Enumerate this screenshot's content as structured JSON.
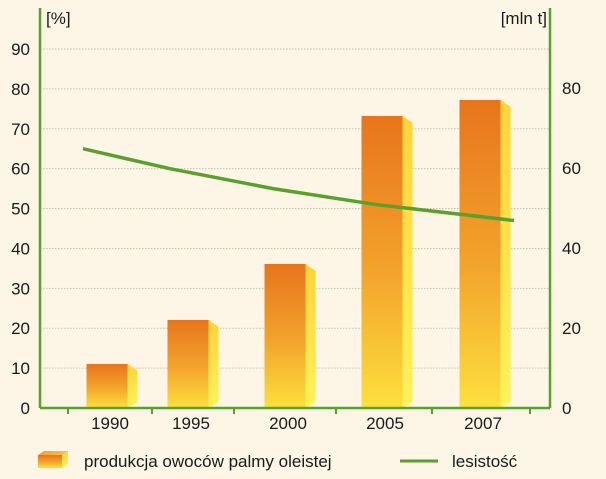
{
  "chart_data": {
    "type": "bar",
    "categories": [
      "1990",
      "1995",
      "2000",
      "2005",
      "2007"
    ],
    "left_axis": {
      "unit_label": "[%]",
      "ylim": [
        0,
        90
      ],
      "ticks": [
        "0",
        "10",
        "20",
        "30",
        "40",
        "50",
        "60",
        "70",
        "80",
        "90"
      ]
    },
    "right_axis": {
      "unit_label": "[mln t]",
      "ylim": [
        0,
        95
      ],
      "ticks": [
        "0",
        "20",
        "40",
        "60",
        "80"
      ]
    },
    "series": [
      {
        "name": "produkcja owoców palmy oleistej",
        "type": "bar",
        "axis": "right",
        "values": [
          11,
          22,
          36,
          73,
          77
        ]
      },
      {
        "name": "lesistość",
        "type": "line",
        "axis": "left",
        "values": [
          65,
          60,
          55,
          51,
          47
        ]
      }
    ],
    "grid": true,
    "legend_position": "bottom",
    "colors": {
      "background": "#fdf6e6",
      "gridline": "#c9c2ad",
      "axis": "#5aa02c",
      "line": "#5aa02c",
      "bar_top": "#e87a1e",
      "bar_bottom": "#fbd23a",
      "bar_side": "#ffe94a"
    }
  }
}
